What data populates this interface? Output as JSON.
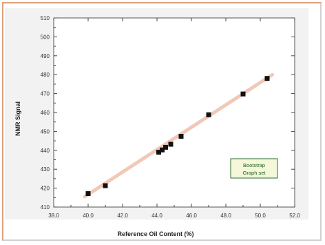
{
  "chart_data": {
    "type": "scatter",
    "xlabel": "Reference Oil Content (%)",
    "ylabel": "NMR Signal",
    "xlim": [
      38.0,
      52.0
    ],
    "ylim": [
      410,
      510
    ],
    "x_ticks": [
      "38.0",
      "40.0",
      "42.0",
      "44.0",
      "46.0",
      "48.0",
      "50.0",
      "52.0"
    ],
    "y_ticks": [
      "410",
      "420",
      "430",
      "440",
      "450",
      "460",
      "470",
      "480",
      "490",
      "500",
      "510"
    ],
    "legend": [
      "Bootstrap",
      "Graph set"
    ],
    "grid": false,
    "series": [
      {
        "x": [
          40.0,
          41.0,
          44.1,
          44.3,
          44.5,
          44.8,
          45.4,
          47.0,
          49.0,
          50.4
        ],
        "y": [
          417.1,
          421.3,
          439.0,
          440.2,
          441.6,
          443.2,
          447.4,
          458.8,
          469.8,
          478.0
        ],
        "color": "#111111"
      }
    ],
    "fit_line": {
      "x": [
        39.8,
        50.7
      ],
      "y": [
        415.5,
        480.0
      ],
      "color": "#e89a7a"
    }
  }
}
